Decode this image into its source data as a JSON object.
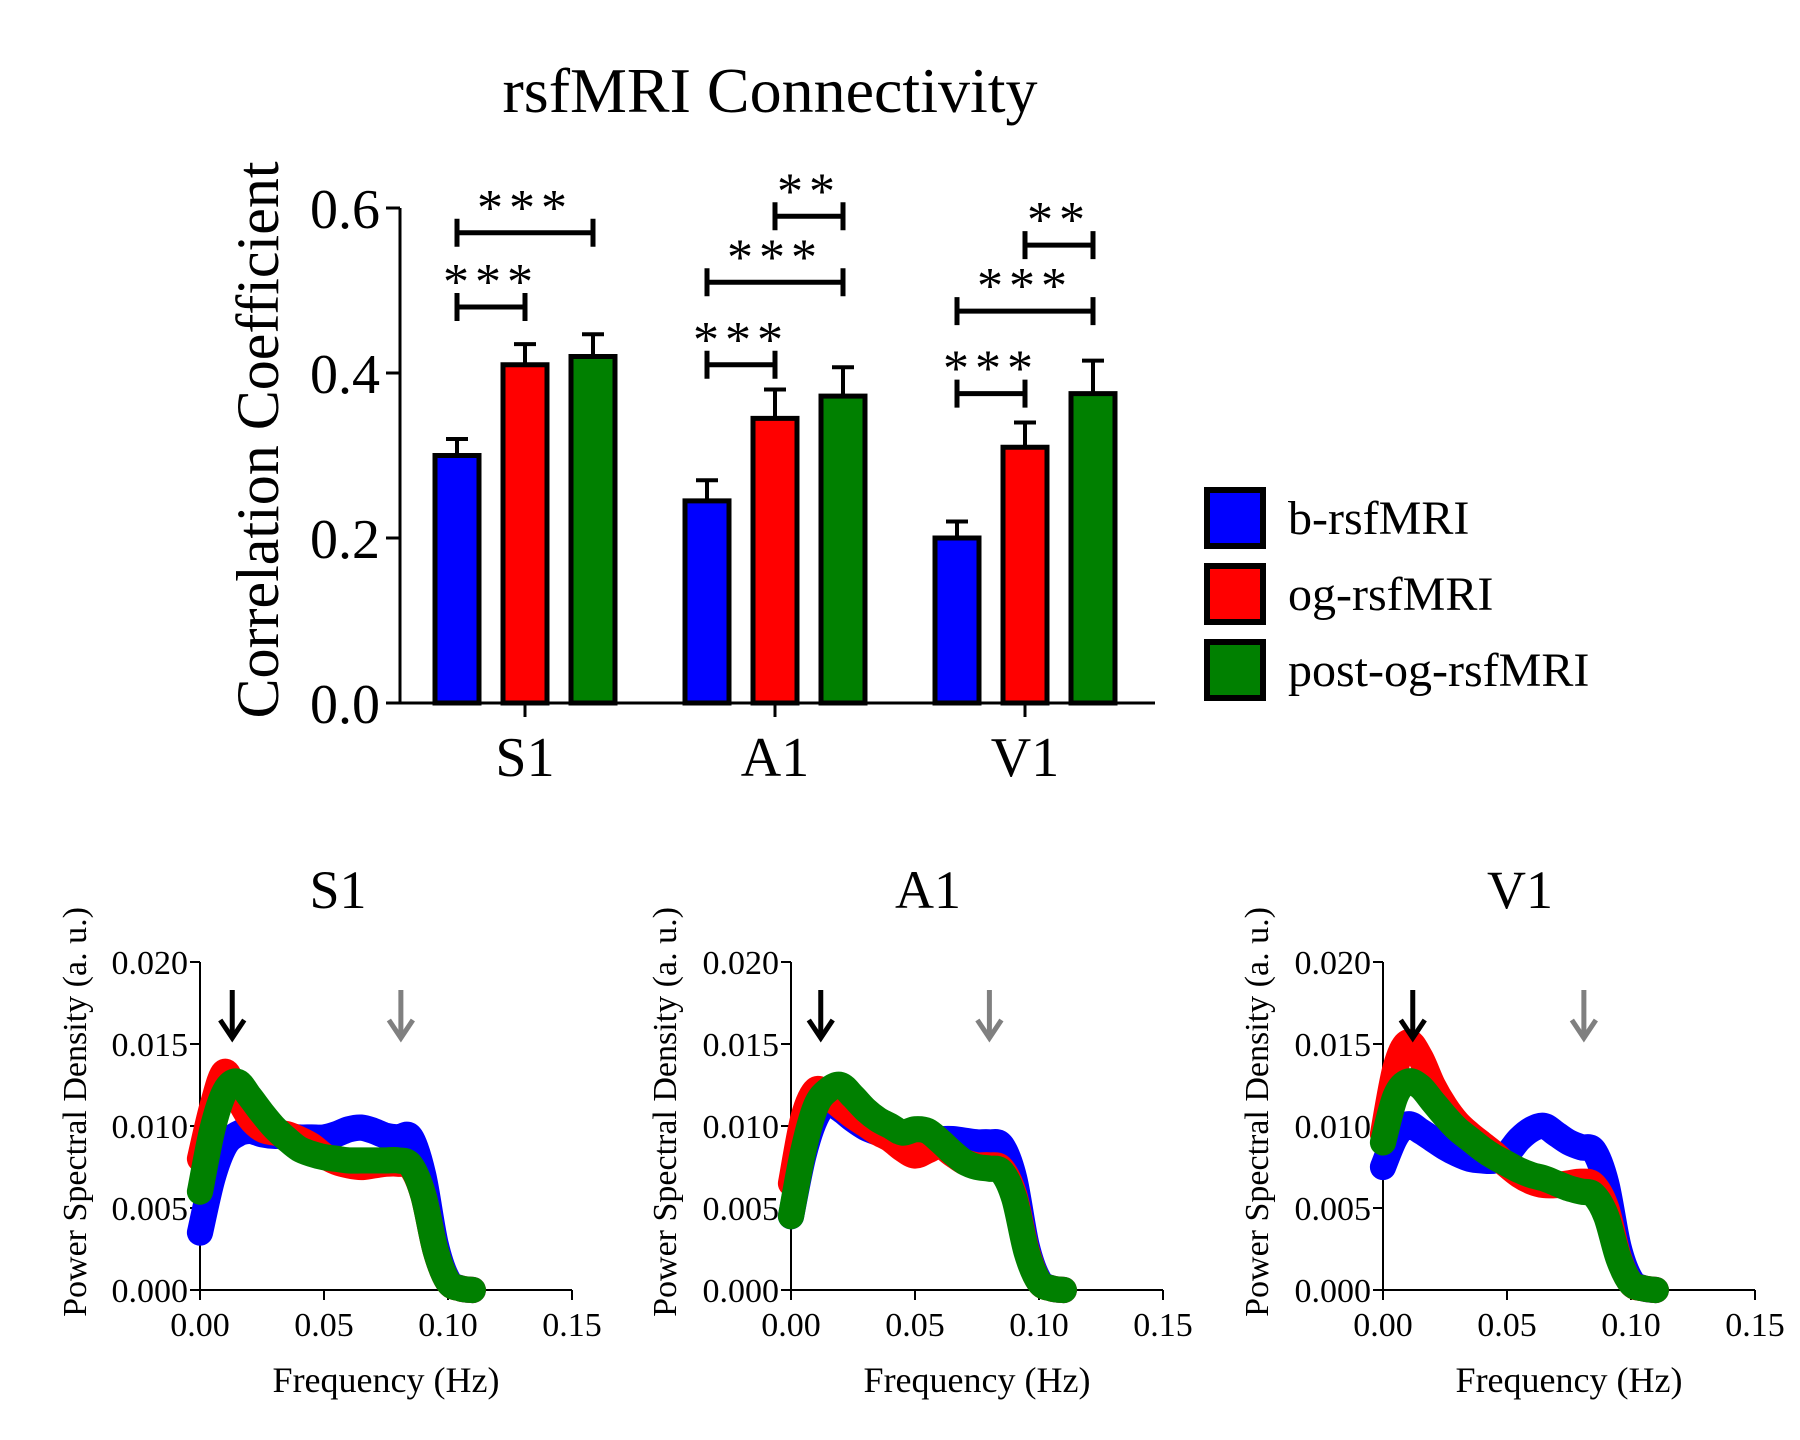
{
  "colors": {
    "b-rsfMRI": "#0000ff",
    "og-rsfMRI": "#ff0000",
    "post-og-rsfMRI": "#008000",
    "axis": "#000000",
    "arrow_primary": "#000000",
    "arrow_secondary": "#808080"
  },
  "chart_data": [
    {
      "type": "bar",
      "title": "rsfMRI Connectivity",
      "xlabel": "",
      "ylabel": "Correlation Coefficient",
      "categories": [
        "S1",
        "A1",
        "V1"
      ],
      "ylim": [
        0,
        0.6
      ],
      "yticks": [
        "0.0",
        "0.2",
        "0.4",
        "0.6"
      ],
      "legend_position": "right",
      "series": [
        {
          "name": "b-rsfMRI",
          "values": [
            0.3,
            0.245,
            0.2
          ],
          "errors": [
            0.02,
            0.025,
            0.02
          ]
        },
        {
          "name": "og-rsfMRI",
          "values": [
            0.41,
            0.345,
            0.31
          ],
          "errors": [
            0.025,
            0.035,
            0.03
          ]
        },
        {
          "name": "post-og-rsfMRI",
          "values": [
            0.42,
            0.372,
            0.375
          ],
          "errors": [
            0.027,
            0.035,
            0.04
          ]
        }
      ],
      "significance": [
        {
          "category": "S1",
          "from": 0,
          "to": 1,
          "label": "***",
          "y": 0.48
        },
        {
          "category": "S1",
          "from": 0,
          "to": 2,
          "label": "***",
          "y": 0.57
        },
        {
          "category": "A1",
          "from": 0,
          "to": 1,
          "label": "***",
          "y": 0.41
        },
        {
          "category": "A1",
          "from": 0,
          "to": 2,
          "label": "***",
          "y": 0.51
        },
        {
          "category": "A1",
          "from": 1,
          "to": 2,
          "label": "**",
          "y": 0.59
        },
        {
          "category": "V1",
          "from": 0,
          "to": 1,
          "label": "***",
          "y": 0.375
        },
        {
          "category": "V1",
          "from": 0,
          "to": 2,
          "label": "***",
          "y": 0.475
        },
        {
          "category": "V1",
          "from": 1,
          "to": 2,
          "label": "**",
          "y": 0.555
        }
      ]
    },
    {
      "type": "area",
      "title": "S1",
      "xlabel": "Frequency (Hz)",
      "ylabel": "Power Spectral Density (a. u.)",
      "xlim": [
        0,
        0.15
      ],
      "ylim": [
        0,
        0.02
      ],
      "xticks": [
        "0.00",
        "0.05",
        "0.10",
        "0.15"
      ],
      "yticks": [
        "0.000",
        "0.005",
        "0.010",
        "0.015",
        "0.020"
      ],
      "arrows": [
        {
          "x": 0.013,
          "color": "black"
        },
        {
          "x": 0.081,
          "color": "gray"
        }
      ],
      "x": [
        0,
        0.005,
        0.01,
        0.015,
        0.02,
        0.025,
        0.03,
        0.035,
        0.04,
        0.045,
        0.05,
        0.055,
        0.06,
        0.065,
        0.07,
        0.075,
        0.08,
        0.085,
        0.09,
        0.095,
        0.1,
        0.105,
        0.11
      ],
      "series": [
        {
          "name": "b-rsfMRI",
          "band": 0.0008,
          "values": [
            0.0035,
            0.0068,
            0.0088,
            0.0095,
            0.0097,
            0.0095,
            0.0094,
            0.0094,
            0.0093,
            0.0093,
            0.0093,
            0.0095,
            0.0098,
            0.0099,
            0.0097,
            0.0094,
            0.0093,
            0.0093,
            0.007,
            0.0028,
            0.0006,
            0.0001,
            0
          ]
        },
        {
          "name": "og-rsfMRI",
          "band": 0.0008,
          "values": [
            0.008,
            0.0112,
            0.0133,
            0.0118,
            0.0105,
            0.0098,
            0.0096,
            0.0095,
            0.0092,
            0.0088,
            0.0082,
            0.0078,
            0.0076,
            0.0075,
            0.0076,
            0.0077,
            0.0077,
            0.0075,
            0.0058,
            0.0024,
            0.0005,
            0.0001,
            0
          ]
        },
        {
          "name": "post-og-rsfMRI",
          "band": 0.0008,
          "values": [
            0.006,
            0.0098,
            0.0121,
            0.0127,
            0.0118,
            0.0108,
            0.0099,
            0.0092,
            0.0086,
            0.0083,
            0.0081,
            0.008,
            0.0079,
            0.0079,
            0.0079,
            0.0079,
            0.0079,
            0.0076,
            0.0058,
            0.0024,
            0.0005,
            0.0001,
            0
          ]
        }
      ]
    },
    {
      "type": "area",
      "title": "A1",
      "xlabel": "Frequency (Hz)",
      "ylabel": "Power Spectral Density (a. u.)",
      "xlim": [
        0,
        0.15
      ],
      "ylim": [
        0,
        0.02
      ],
      "xticks": [
        "0.00",
        "0.05",
        "0.10",
        "0.15"
      ],
      "yticks": [
        "0.000",
        "0.005",
        "0.010",
        "0.015",
        "0.020"
      ],
      "arrows": [
        {
          "x": 0.012,
          "color": "black"
        },
        {
          "x": 0.08,
          "color": "gray"
        }
      ],
      "x": [
        0,
        0.005,
        0.01,
        0.015,
        0.02,
        0.025,
        0.03,
        0.035,
        0.04,
        0.045,
        0.05,
        0.055,
        0.06,
        0.065,
        0.07,
        0.075,
        0.08,
        0.085,
        0.09,
        0.095,
        0.1,
        0.105,
        0.11
      ],
      "series": [
        {
          "name": "b-rsfMRI",
          "band": 0.0008,
          "values": [
            0.0045,
            0.0082,
            0.0105,
            0.0114,
            0.011,
            0.0104,
            0.0099,
            0.0096,
            0.0094,
            0.0093,
            0.0092,
            0.0092,
            0.0092,
            0.0092,
            0.0091,
            0.009,
            0.009,
            0.0088,
            0.0068,
            0.0027,
            0.0006,
            0.0001,
            0
          ]
        },
        {
          "name": "og-rsfMRI",
          "band": 0.0008,
          "values": [
            0.0065,
            0.0105,
            0.0122,
            0.0118,
            0.0112,
            0.0106,
            0.0101,
            0.0096,
            0.0092,
            0.0086,
            0.0082,
            0.0085,
            0.0088,
            0.0083,
            0.0078,
            0.0076,
            0.0076,
            0.0074,
            0.0058,
            0.0024,
            0.0005,
            0.0001,
            0
          ]
        },
        {
          "name": "post-og-rsfMRI",
          "band": 0.0008,
          "values": [
            0.0045,
            0.0085,
            0.0112,
            0.0122,
            0.0125,
            0.0118,
            0.011,
            0.0104,
            0.01,
            0.0096,
            0.0098,
            0.0097,
            0.0091,
            0.0084,
            0.0078,
            0.0075,
            0.0074,
            0.0072,
            0.0056,
            0.0023,
            0.0005,
            0.0001,
            0
          ]
        }
      ]
    },
    {
      "type": "area",
      "title": "V1",
      "xlabel": "Frequency (Hz)",
      "ylabel": "Power Spectral Density (a. u.)",
      "xlim": [
        0,
        0.15
      ],
      "ylim": [
        0,
        0.02
      ],
      "xticks": [
        "0.00",
        "0.05",
        "0.10",
        "0.15"
      ],
      "yticks": [
        "0.000",
        "0.005",
        "0.010",
        "0.015",
        "0.020"
      ],
      "arrows": [
        {
          "x": 0.012,
          "color": "black"
        },
        {
          "x": 0.081,
          "color": "gray"
        }
      ],
      "x": [
        0,
        0.005,
        0.01,
        0.015,
        0.02,
        0.025,
        0.03,
        0.035,
        0.04,
        0.045,
        0.05,
        0.055,
        0.06,
        0.065,
        0.07,
        0.075,
        0.08,
        0.085,
        0.09,
        0.095,
        0.1,
        0.105,
        0.11
      ],
      "series": [
        {
          "name": "b-rsfMRI",
          "band": 0.0008,
          "values": [
            0.0075,
            0.0093,
            0.0101,
            0.0097,
            0.0092,
            0.0087,
            0.0083,
            0.008,
            0.0079,
            0.0079,
            0.0083,
            0.0092,
            0.0098,
            0.01,
            0.0095,
            0.009,
            0.0087,
            0.0085,
            0.0065,
            0.0026,
            0.0006,
            0.0001,
            0
          ]
        },
        {
          "name": "og-rsfMRI",
          "band": 0.0008,
          "values": [
            0.0095,
            0.0135,
            0.0151,
            0.0142,
            0.0125,
            0.0112,
            0.0102,
            0.0095,
            0.0089,
            0.0083,
            0.0076,
            0.007,
            0.0066,
            0.0064,
            0.0064,
            0.0065,
            0.0066,
            0.0064,
            0.005,
            0.002,
            0.0004,
            0.0001,
            0
          ]
        },
        {
          "name": "post-og-rsfMRI",
          "band": 0.0008,
          "values": [
            0.009,
            0.0118,
            0.0127,
            0.0124,
            0.0115,
            0.0106,
            0.0098,
            0.0092,
            0.0086,
            0.0081,
            0.0077,
            0.0073,
            0.007,
            0.0068,
            0.0065,
            0.0062,
            0.006,
            0.0058,
            0.0045,
            0.0019,
            0.0004,
            0.0001,
            0
          ]
        }
      ]
    }
  ]
}
